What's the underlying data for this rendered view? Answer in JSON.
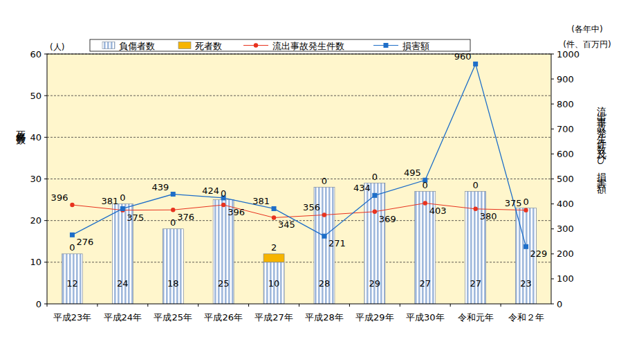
{
  "chart_data": {
    "type": "bar",
    "stacked": true,
    "data_labels": true,
    "grid": true,
    "legend": "top",
    "annotation": "(各年中)",
    "ylabel": "死傷者数",
    "yunit": "(人)",
    "y2label": "流出事故発生件数及び損害額",
    "y2unit": "(件、百万円)",
    "categories": [
      "平成23年",
      "平成24年",
      "平成25年",
      "平成26年",
      "平成27年",
      "平成28年",
      "平成29年",
      "平成30年",
      "令和元年",
      "令和２年"
    ],
    "ylim": [
      0,
      60
    ],
    "yticks": [
      0,
      10,
      20,
      30,
      40,
      50,
      60
    ],
    "y2lim": [
      0,
      1000
    ],
    "y2ticks": [
      0,
      100,
      200,
      300,
      400,
      500,
      600,
      700,
      800,
      900,
      1000
    ],
    "series": [
      {
        "name": "負傷者数",
        "type": "bar",
        "color": "#9fb8dc",
        "values": [
          12,
          24,
          18,
          25,
          10,
          28,
          29,
          27,
          27,
          23
        ]
      },
      {
        "name": "死者数",
        "type": "bar",
        "color": "#f6b400",
        "values": [
          0,
          0,
          0,
          0,
          2,
          0,
          0,
          0,
          0,
          0
        ]
      },
      {
        "name": "流出事故発生件数",
        "type": "line",
        "axis": "y2",
        "color": "#e8321e",
        "marker": "circle",
        "values": [
          396,
          375,
          376,
          396,
          345,
          356,
          369,
          403,
          380,
          375
        ]
      },
      {
        "name": "損害額",
        "type": "line",
        "axis": "y2",
        "color": "#1e6ec8",
        "marker": "square",
        "values": [
          276,
          381,
          439,
          424,
          381,
          271,
          434,
          495,
          960,
          229
        ]
      }
    ]
  }
}
